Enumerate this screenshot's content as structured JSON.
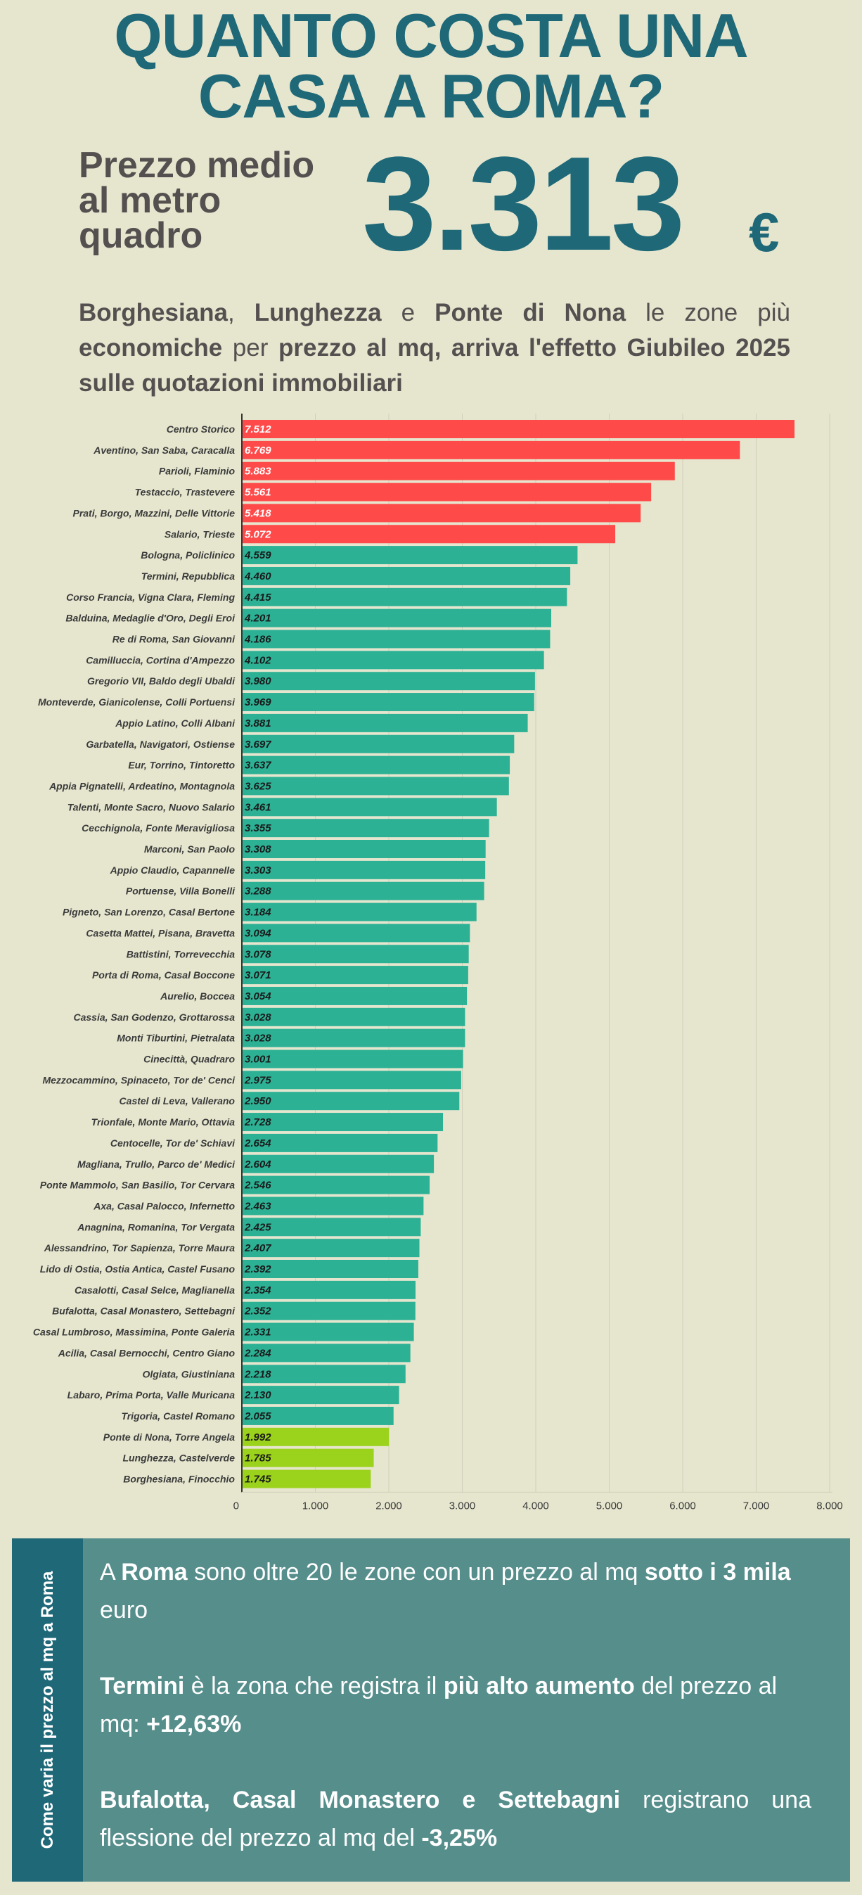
{
  "header": {
    "title_line1": "QUANTO COSTA UNA",
    "title_line2": "CASA A ROMA?",
    "price_label_line1": "Prezzo medio",
    "price_label_line2": "al metro",
    "price_label_line3": "quadro",
    "price_value": "3.313",
    "price_currency": "€"
  },
  "subtitle": {
    "z1": "Borghesiana",
    "sep1": ", ",
    "z2": "Lunghezza",
    "sep2": " e ",
    "z3": "Ponte di Nona",
    "t1": " le zone più ",
    "b1": "economiche",
    "t2": " per ",
    "b2": "prezzo al mq, arriva l'effetto Giubileo 2025 sulle quotazioni immobiliari"
  },
  "colors": {
    "title": "#1e6878",
    "high": "#ff4a4a",
    "mid": "#2db195",
    "low": "#9bd21b",
    "panel": "#568e8c",
    "panel_side": "#1e6878"
  },
  "chart_data": {
    "type": "bar",
    "orientation": "horizontal",
    "xlim": [
      0,
      8000
    ],
    "xticks": [
      "0",
      "1.000",
      "2.000",
      "3.000",
      "4.000",
      "5.000",
      "6.000",
      "7.000",
      "8.000"
    ],
    "grid": true,
    "categories": [
      "Centro Storico",
      "Aventino, San Saba, Caracalla",
      "Parioli, Flaminio",
      "Testaccio, Trastevere",
      "Prati, Borgo, Mazzini, Delle Vittorie",
      "Salario, Trieste",
      "Bologna, Policlinico",
      "Termini, Repubblica",
      "Corso Francia, Vigna Clara, Fleming",
      "Balduina, Medaglie d'Oro, Degli Eroi",
      "Re di Roma, San Giovanni",
      "Camilluccia, Cortina d'Ampezzo",
      "Gregorio VII, Baldo degli Ubaldi",
      "Monteverde, Gianicolense, Colli Portuensi",
      "Appio Latino, Colli Albani",
      "Garbatella, Navigatori, Ostiense",
      "Eur, Torrino, Tintoretto",
      "Appia Pignatelli, Ardeatino, Montagnola",
      "Talenti, Monte Sacro, Nuovo Salario",
      "Cecchignola, Fonte Meravigliosa",
      "Marconi, San Paolo",
      "Appio Claudio, Capannelle",
      "Portuense, Villa Bonelli",
      "Pigneto, San Lorenzo, Casal Bertone",
      "Casetta Mattei, Pisana, Bravetta",
      "Battistini, Torrevecchia",
      "Porta di Roma, Casal Boccone",
      "Aurelio, Boccea",
      "Cassia, San Godenzo, Grottarossa",
      "Monti Tiburtini, Pietralata",
      "Cinecittà, Quadraro",
      "Mezzocammino, Spinaceto, Tor de' Cenci",
      "Castel di Leva, Vallerano",
      "Trionfale, Monte Mario, Ottavia",
      "Centocelle, Tor de' Schiavi",
      "Magliana, Trullo, Parco de' Medici",
      "Ponte Mammolo, San Basilio, Tor Cervara",
      "Axa, Casal Palocco, Infernetto",
      "Anagnina, Romanina, Tor Vergata",
      "Alessandrino, Tor Sapienza, Torre Maura",
      "Lido di Ostia, Ostia Antica, Castel Fusano",
      "Casalotti, Casal Selce, Maglianella",
      "Bufalotta, Casal Monastero, Settebagni",
      "Casal Lumbroso, Massimina, Ponte Galeria",
      "Acilia, Casal Bernocchi, Centro Giano",
      "Olgiata, Giustiniana",
      "Labaro, Prima Porta, Valle Muricana",
      "Trigoria, Castel Romano",
      "Ponte di Nona, Torre Angela",
      "Lunghezza, Castelverde",
      "Borghesiana, Finocchio"
    ],
    "values": [
      7512,
      6769,
      5883,
      5561,
      5418,
      5072,
      4559,
      4460,
      4415,
      4201,
      4186,
      4102,
      3980,
      3969,
      3881,
      3697,
      3637,
      3625,
      3461,
      3355,
      3308,
      3303,
      3288,
      3184,
      3094,
      3078,
      3071,
      3054,
      3028,
      3028,
      3001,
      2975,
      2950,
      2728,
      2654,
      2604,
      2546,
      2463,
      2425,
      2407,
      2392,
      2354,
      2352,
      2331,
      2284,
      2218,
      2130,
      2055,
      1992,
      1785,
      1745
    ],
    "value_labels": [
      "7.512",
      "6.769",
      "5.883",
      "5.561",
      "5.418",
      "5.072",
      "4.559",
      "4.460",
      "4.415",
      "4.201",
      "4.186",
      "4.102",
      "3.980",
      "3.969",
      "3.881",
      "3.697",
      "3.637",
      "3.625",
      "3.461",
      "3.355",
      "3.308",
      "3.303",
      "3.288",
      "3.184",
      "3.094",
      "3.078",
      "3.071",
      "3.054",
      "3.028",
      "3.028",
      "3.001",
      "2.975",
      "2.950",
      "2.728",
      "2.654",
      "2.604",
      "2.546",
      "2.463",
      "2.425",
      "2.407",
      "2.392",
      "2.354",
      "2.352",
      "2.331",
      "2.284",
      "2.218",
      "2.130",
      "2.055",
      "1.992",
      "1.785",
      "1.745"
    ],
    "groups": [
      "high",
      "high",
      "high",
      "high",
      "high",
      "high",
      "mid",
      "mid",
      "mid",
      "mid",
      "mid",
      "mid",
      "mid",
      "mid",
      "mid",
      "mid",
      "mid",
      "mid",
      "mid",
      "mid",
      "mid",
      "mid",
      "mid",
      "mid",
      "mid",
      "mid",
      "mid",
      "mid",
      "mid",
      "mid",
      "mid",
      "mid",
      "mid",
      "mid",
      "mid",
      "mid",
      "mid",
      "mid",
      "mid",
      "mid",
      "mid",
      "mid",
      "mid",
      "mid",
      "mid",
      "mid",
      "mid",
      "mid",
      "low",
      "low",
      "low"
    ]
  },
  "panel": {
    "side_label": "Come varia il prezzo al mq a Roma",
    "p1_a": "A ",
    "p1_b": "Roma",
    "p1_c": " sono oltre 20 le zone con un prezzo al mq ",
    "p1_d": "sotto i 3 mila",
    "p1_e": " euro",
    "p2_a": "Termini",
    "p2_b": " è la zona che registra il ",
    "p2_c": "più alto aumento",
    "p2_d": " del prezzo al mq: ",
    "p2_e": "+12,63%",
    "p3_a": "Bufalotta, Casal Monastero e Settebagni",
    "p3_b": " registrano una flessione del prezzo al mq del ",
    "p3_c": "-3,25%"
  }
}
